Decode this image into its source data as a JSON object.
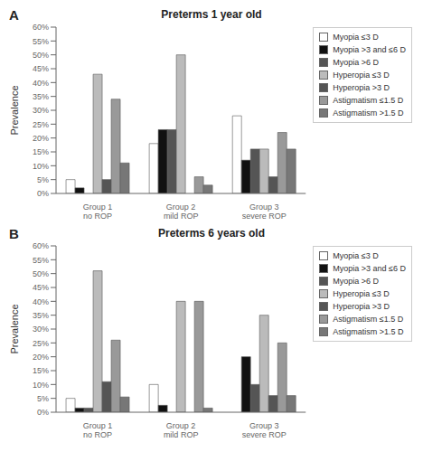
{
  "chart_data": [
    {
      "type": "bar",
      "title": "Preterms 1 year old",
      "annotations": [
        "A"
      ],
      "ylabel": "Prevalence",
      "categories": [
        "Group 1\nno ROP",
        "Group 2\nmild ROP",
        "Group 3\nsevere ROP"
      ],
      "series": [
        {
          "name": "Myopia ≤3 D",
          "color": "#ffffff",
          "values": [
            5,
            18,
            28
          ]
        },
        {
          "name": "Myopia >3 and ≤6 D",
          "color": "#111111",
          "values": [
            2,
            23,
            12
          ]
        },
        {
          "name": "Myopia >6 D",
          "color": "#555555",
          "values": [
            0,
            23,
            16
          ]
        },
        {
          "name": "Hyperopia ≤3 D",
          "color": "#bbbbbb",
          "values": [
            43,
            50,
            16
          ]
        },
        {
          "name": "Hyperopia >3 D",
          "color": "#555555",
          "values": [
            5,
            0,
            6
          ]
        },
        {
          "name": "Astigmatism ≤1.5 D",
          "color": "#999999",
          "values": [
            34,
            6,
            22
          ]
        },
        {
          "name": "Astigmatism >1.5 D",
          "color": "#777777",
          "values": [
            11,
            3,
            16
          ]
        }
      ],
      "ylim": [
        0,
        60
      ],
      "yticks": [
        {
          "value": 0,
          "label": "0%"
        },
        {
          "value": 5,
          "label": "5%"
        },
        {
          "value": 10,
          "label": "10%"
        },
        {
          "value": 15,
          "label": "15%"
        },
        {
          "value": 20,
          "label": "20%"
        },
        {
          "value": 25,
          "label": "25%"
        },
        {
          "value": 30,
          "label": "30%"
        },
        {
          "value": 35,
          "label": "35%"
        },
        {
          "value": 40,
          "label": "40%"
        },
        {
          "value": 45,
          "label": "45%"
        },
        {
          "value": 50,
          "label": "50%"
        },
        {
          "value": 55,
          "label": "55%"
        },
        {
          "value": 60,
          "label": "60%"
        }
      ],
      "grid": false,
      "legend": "right"
    },
    {
      "type": "bar",
      "title": "Preterms 6 years old",
      "annotations": [
        "B"
      ],
      "ylabel": "Prevalence",
      "categories": [
        "Group 1\nno ROP",
        "Group 2\nmild ROP",
        "Group 3\nsevere ROP"
      ],
      "series": [
        {
          "name": "Myopia ≤3 D",
          "color": "#ffffff",
          "values": [
            5,
            10,
            0
          ]
        },
        {
          "name": "Myopia >3 and ≤6 D",
          "color": "#111111",
          "values": [
            1.5,
            2.5,
            20
          ]
        },
        {
          "name": "Myopia >6 D",
          "color": "#555555",
          "values": [
            1.5,
            0,
            10
          ]
        },
        {
          "name": "Hyperopia ≤3 D",
          "color": "#bbbbbb",
          "values": [
            51,
            40,
            35
          ]
        },
        {
          "name": "Hyperopia >3 D",
          "color": "#555555",
          "values": [
            11,
            0,
            6
          ]
        },
        {
          "name": "Astigmatism ≤1.5 D",
          "color": "#999999",
          "values": [
            26,
            40,
            25
          ]
        },
        {
          "name": "Astigmatism >1.5 D",
          "color": "#777777",
          "values": [
            5.5,
            1.5,
            6
          ]
        }
      ],
      "ylim": [
        0,
        60
      ],
      "yticks": [
        {
          "value": 0,
          "label": "0%"
        },
        {
          "value": 5,
          "label": "5%"
        },
        {
          "value": 10,
          "label": "10%"
        },
        {
          "value": 15,
          "label": "15%"
        },
        {
          "value": 20,
          "label": "20%"
        },
        {
          "value": 25,
          "label": "25%"
        },
        {
          "value": 30,
          "label": "30%"
        },
        {
          "value": 35,
          "label": "35%"
        },
        {
          "value": 40,
          "label": "40%"
        },
        {
          "value": 45,
          "label": "45%"
        },
        {
          "value": 50,
          "label": "50%"
        },
        {
          "value": 55,
          "label": "55%"
        },
        {
          "value": 60,
          "label": "60%"
        }
      ],
      "grid": false,
      "legend": "right"
    }
  ]
}
